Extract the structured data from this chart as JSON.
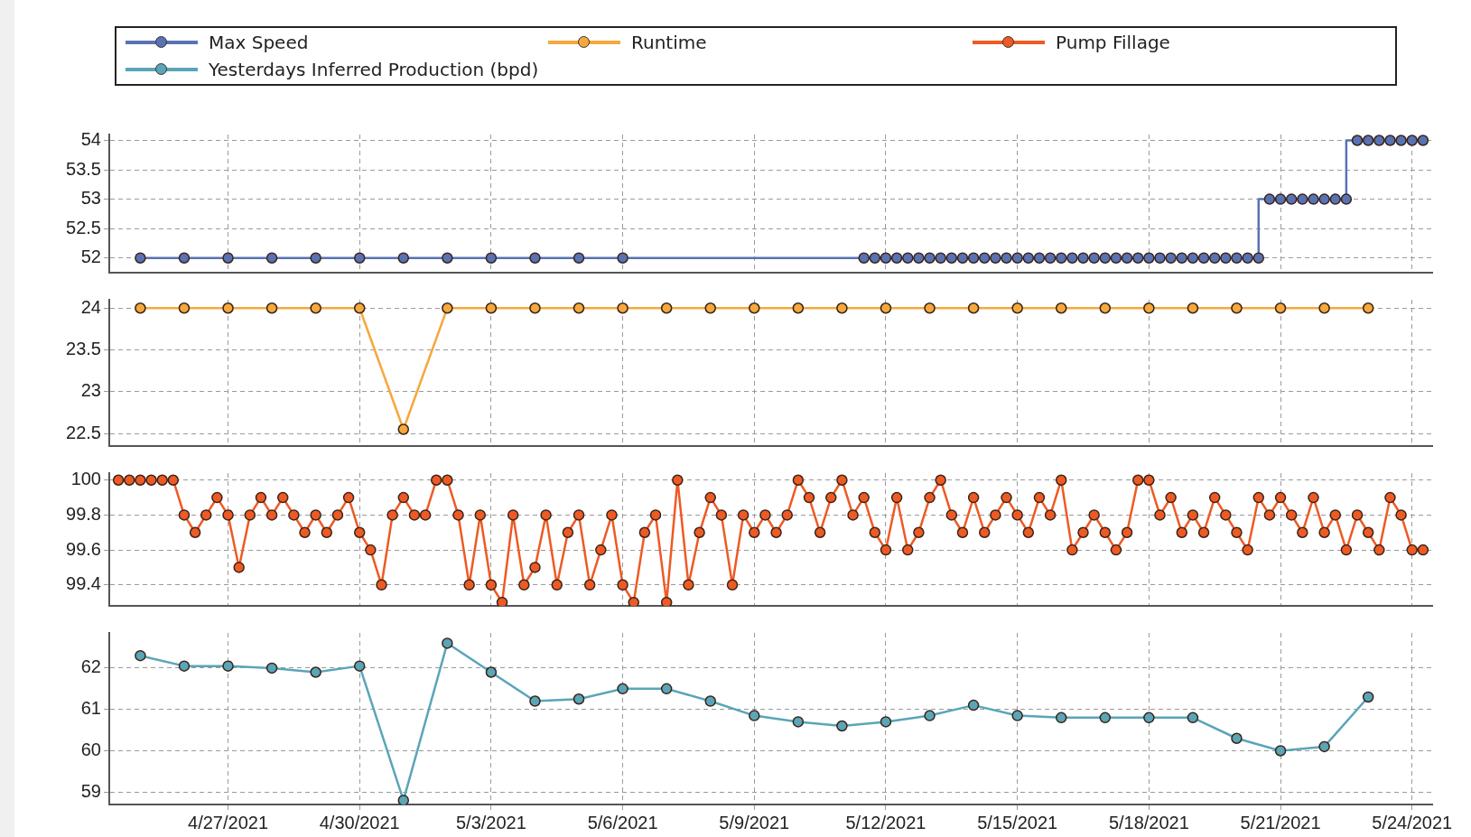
{
  "chart_data": [
    {
      "type": "step",
      "x": [
        "2021-04-25",
        "2021-04-26",
        "2021-04-27",
        "2021-04-28",
        "2021-04-29",
        "2021-04-30",
        "2021-05-01",
        "2021-05-02",
        "2021-05-03",
        "2021-05-04",
        "2021-05-05",
        "2021-05-06",
        "2021-05-11T12:00",
        "2021-05-11T18:00",
        "2021-05-12T00:00",
        "2021-05-12T06:00",
        "2021-05-12T12:00",
        "2021-05-12T18:00",
        "2021-05-13T00:00",
        "2021-05-13T06:00",
        "2021-05-13T12:00",
        "2021-05-13T18:00",
        "2021-05-14T00:00",
        "2021-05-14T06:00",
        "2021-05-14T12:00",
        "2021-05-14T18:00",
        "2021-05-15T00:00",
        "2021-05-15T06:00",
        "2021-05-15T12:00",
        "2021-05-15T18:00",
        "2021-05-16T00:00",
        "2021-05-16T06:00",
        "2021-05-16T12:00",
        "2021-05-16T18:00",
        "2021-05-17T00:00",
        "2021-05-17T06:00",
        "2021-05-17T12:00",
        "2021-05-17T18:00",
        "2021-05-18T00:00",
        "2021-05-18T06:00",
        "2021-05-18T12:00",
        "2021-05-18T18:00",
        "2021-05-19T00:00",
        "2021-05-19T06:00",
        "2021-05-19T12:00",
        "2021-05-19T18:00",
        "2021-05-20T00:00",
        "2021-05-20T06:00",
        "2021-05-20T12:00",
        "2021-05-20T18:00",
        "2021-05-21T00:00",
        "2021-05-21T06:00",
        "2021-05-21T12:00",
        "2021-05-21T18:00",
        "2021-05-22T00:00",
        "2021-05-22T06:00",
        "2021-05-22T12:00",
        "2021-05-22T18:00",
        "2021-05-23T00:00",
        "2021-05-23T06:00",
        "2021-05-23T12:00",
        "2021-05-23T18:00",
        "2021-05-24T00:00",
        "2021-05-24T06:00"
      ],
      "series": [
        {
          "name": "Max Speed",
          "color": "#5872b4",
          "values": [
            52,
            52,
            52,
            52,
            52,
            52,
            52,
            52,
            52,
            52,
            52,
            52,
            52,
            52,
            52,
            52,
            52,
            52,
            52,
            52,
            52,
            52,
            52,
            52,
            52,
            52,
            52,
            52,
            52,
            52,
            52,
            52,
            52,
            52,
            52,
            52,
            52,
            52,
            52,
            52,
            52,
            52,
            52,
            52,
            52,
            52,
            52,
            52,
            52,
            53,
            53,
            53,
            53,
            53,
            53,
            53,
            53,
            54,
            54,
            54,
            54,
            54,
            54,
            54
          ]
        }
      ],
      "xlim": [
        "2021-04-24T07:00",
        "2021-05-24T11:00"
      ],
      "xticks": [
        {
          "value": "2021-04-27",
          "label": null
        },
        {
          "value": "2021-04-30",
          "label": null
        },
        {
          "value": "2021-05-03",
          "label": null
        },
        {
          "value": "2021-05-06",
          "label": null
        },
        {
          "value": "2021-05-09",
          "label": null
        },
        {
          "value": "2021-05-12",
          "label": null
        },
        {
          "value": "2021-05-15",
          "label": null
        },
        {
          "value": "2021-05-18",
          "label": null
        },
        {
          "value": "2021-05-21",
          "label": null
        },
        {
          "value": "2021-05-24",
          "label": null
        }
      ],
      "ylim": [
        51.75,
        54.1
      ],
      "yticks": [
        52,
        52.5,
        53,
        53.5,
        54
      ],
      "grid": true,
      "marker": "circle",
      "legend": "top",
      "tick_labels": "y"
    },
    {
      "type": "line",
      "x": [
        "2021-04-25",
        "2021-04-26",
        "2021-04-27",
        "2021-04-28",
        "2021-04-29",
        "2021-04-30",
        "2021-05-01",
        "2021-05-02",
        "2021-05-03",
        "2021-05-04",
        "2021-05-05",
        "2021-05-06",
        "2021-05-07",
        "2021-05-08",
        "2021-05-09",
        "2021-05-10",
        "2021-05-11",
        "2021-05-12",
        "2021-05-13",
        "2021-05-14",
        "2021-05-15",
        "2021-05-16",
        "2021-05-17",
        "2021-05-18",
        "2021-05-19",
        "2021-05-20",
        "2021-05-21",
        "2021-05-22",
        "2021-05-23"
      ],
      "series": [
        {
          "name": "Runtime",
          "color": "#f5a83c",
          "values": [
            24,
            24,
            24,
            24,
            24,
            24,
            22.55,
            24,
            24,
            24,
            24,
            24,
            24,
            24,
            24,
            24,
            24,
            24,
            24,
            24,
            24,
            24,
            24,
            24,
            24,
            24,
            24,
            24,
            24
          ]
        }
      ],
      "xlim": [
        "2021-04-24T07:00",
        "2021-05-24T11:00"
      ],
      "xticks": [
        {
          "value": "2021-04-27",
          "label": null
        },
        {
          "value": "2021-04-30",
          "label": null
        },
        {
          "value": "2021-05-03",
          "label": null
        },
        {
          "value": "2021-05-06",
          "label": null
        },
        {
          "value": "2021-05-09",
          "label": null
        },
        {
          "value": "2021-05-12",
          "label": null
        },
        {
          "value": "2021-05-15",
          "label": null
        },
        {
          "value": "2021-05-18",
          "label": null
        },
        {
          "value": "2021-05-21",
          "label": null
        },
        {
          "value": "2021-05-24",
          "label": null
        }
      ],
      "ylim": [
        22.35,
        24.1
      ],
      "yticks": [
        22.5,
        23,
        23.5,
        24
      ],
      "grid": true,
      "marker": "circle",
      "legend": "top",
      "tick_labels": "y"
    },
    {
      "type": "line",
      "x": [
        "2021-04-24T12:00",
        "2021-04-24T18:00",
        "2021-04-25T00:00",
        "2021-04-25T06:00",
        "2021-04-25T12:00",
        "2021-04-25T18:00",
        "2021-04-26T00:00",
        "2021-04-26T06:00",
        "2021-04-26T12:00",
        "2021-04-26T18:00",
        "2021-04-27T00:00",
        "2021-04-27T06:00",
        "2021-04-27T12:00",
        "2021-04-27T18:00",
        "2021-04-28T00:00",
        "2021-04-28T06:00",
        "2021-04-28T12:00",
        "2021-04-28T18:00",
        "2021-04-29T00:00",
        "2021-04-29T06:00",
        "2021-04-29T12:00",
        "2021-04-29T18:00",
        "2021-04-30T00:00",
        "2021-04-30T06:00",
        "2021-04-30T12:00",
        "2021-04-30T18:00",
        "2021-05-01T00:00",
        "2021-05-01T06:00",
        "2021-05-01T12:00",
        "2021-05-01T18:00",
        "2021-05-02T00:00",
        "2021-05-02T06:00",
        "2021-05-02T12:00",
        "2021-05-02T18:00",
        "2021-05-03T00:00",
        "2021-05-03T06:00",
        "2021-05-03T12:00",
        "2021-05-03T18:00",
        "2021-05-04T00:00",
        "2021-05-04T06:00",
        "2021-05-04T12:00",
        "2021-05-04T18:00",
        "2021-05-05T00:00",
        "2021-05-05T06:00",
        "2021-05-05T12:00",
        "2021-05-05T18:00",
        "2021-05-06T00:00",
        "2021-05-06T06:00",
        "2021-05-06T12:00",
        "2021-05-06T18:00",
        "2021-05-07T00:00",
        "2021-05-07T06:00",
        "2021-05-07T12:00",
        "2021-05-07T18:00",
        "2021-05-08T00:00",
        "2021-05-08T06:00",
        "2021-05-08T12:00",
        "2021-05-08T18:00",
        "2021-05-09T00:00",
        "2021-05-09T06:00",
        "2021-05-09T12:00",
        "2021-05-09T18:00",
        "2021-05-10T00:00",
        "2021-05-10T06:00",
        "2021-05-10T12:00",
        "2021-05-10T18:00",
        "2021-05-11T00:00",
        "2021-05-11T06:00",
        "2021-05-11T12:00",
        "2021-05-11T18:00",
        "2021-05-12T00:00",
        "2021-05-12T06:00",
        "2021-05-12T12:00",
        "2021-05-12T18:00",
        "2021-05-13T00:00",
        "2021-05-13T06:00",
        "2021-05-13T12:00",
        "2021-05-13T18:00",
        "2021-05-14T00:00",
        "2021-05-14T06:00",
        "2021-05-14T12:00",
        "2021-05-14T18:00",
        "2021-05-15T00:00",
        "2021-05-15T06:00",
        "2021-05-15T12:00",
        "2021-05-15T18:00",
        "2021-05-16T00:00",
        "2021-05-16T06:00",
        "2021-05-16T12:00",
        "2021-05-16T18:00",
        "2021-05-17T00:00",
        "2021-05-17T06:00",
        "2021-05-17T12:00",
        "2021-05-17T18:00",
        "2021-05-18T00:00",
        "2021-05-18T06:00",
        "2021-05-18T12:00",
        "2021-05-18T18:00",
        "2021-05-19T00:00",
        "2021-05-19T06:00",
        "2021-05-19T12:00",
        "2021-05-19T18:00",
        "2021-05-20T00:00",
        "2021-05-20T06:00",
        "2021-05-20T12:00",
        "2021-05-20T18:00",
        "2021-05-21T00:00",
        "2021-05-21T06:00",
        "2021-05-21T12:00",
        "2021-05-21T18:00",
        "2021-05-22T00:00",
        "2021-05-22T06:00",
        "2021-05-22T12:00",
        "2021-05-22T18:00",
        "2021-05-23T00:00",
        "2021-05-23T06:00",
        "2021-05-23T12:00",
        "2021-05-23T18:00",
        "2021-05-24T00:00",
        "2021-05-24T06:00"
      ],
      "series": [
        {
          "name": "Pump Fillage",
          "color": "#ee5a24",
          "values": [
            100,
            100,
            100,
            100,
            100,
            100,
            99.8,
            99.7,
            99.8,
            99.9,
            99.8,
            99.5,
            99.8,
            99.9,
            99.8,
            99.9,
            99.8,
            99.7,
            99.8,
            99.7,
            99.8,
            99.9,
            99.7,
            99.6,
            99.4,
            99.8,
            99.9,
            99.8,
            99.8,
            100,
            100,
            99.8,
            99.4,
            99.8,
            99.4,
            99.3,
            99.8,
            99.4,
            99.5,
            99.8,
            99.4,
            99.7,
            99.8,
            99.4,
            99.6,
            99.8,
            99.4,
            99.3,
            99.7,
            99.8,
            99.3,
            100,
            99.4,
            99.7,
            99.9,
            99.8,
            99.4,
            99.8,
            99.7,
            99.8,
            99.7,
            99.8,
            100,
            99.9,
            99.7,
            99.9,
            100,
            99.8,
            99.9,
            99.7,
            99.6,
            99.9,
            99.6,
            99.7,
            99.9,
            100,
            99.8,
            99.7,
            99.9,
            99.7,
            99.8,
            99.9,
            99.8,
            99.7,
            99.9,
            99.8,
            100,
            99.6,
            99.7,
            99.8,
            99.7,
            99.6,
            99.7,
            100,
            100,
            99.8,
            99.9,
            99.7,
            99.8,
            99.7,
            99.9,
            99.8,
            99.7,
            99.6,
            99.9,
            99.8,
            99.9,
            99.8,
            99.7,
            99.9,
            99.7,
            99.8,
            99.6,
            99.8,
            99.7,
            99.6,
            99.9,
            99.8,
            99.6,
            99.6
          ]
        }
      ],
      "xlim": [
        "2021-04-24T07:00",
        "2021-05-24T11:00"
      ],
      "xticks": [
        {
          "value": "2021-04-27",
          "label": null
        },
        {
          "value": "2021-04-30",
          "label": null
        },
        {
          "value": "2021-05-03",
          "label": null
        },
        {
          "value": "2021-05-06",
          "label": null
        },
        {
          "value": "2021-05-09",
          "label": null
        },
        {
          "value": "2021-05-12",
          "label": null
        },
        {
          "value": "2021-05-15",
          "label": null
        },
        {
          "value": "2021-05-18",
          "label": null
        },
        {
          "value": "2021-05-21",
          "label": null
        },
        {
          "value": "2021-05-24",
          "label": null
        }
      ],
      "ylim": [
        99.28,
        100.04
      ],
      "yticks": [
        99.4,
        99.6,
        99.8,
        100
      ],
      "grid": true,
      "marker": "circle",
      "legend": "top",
      "tick_labels": "y"
    },
    {
      "type": "line",
      "x": [
        "2021-04-25",
        "2021-04-26",
        "2021-04-27",
        "2021-04-28",
        "2021-04-29",
        "2021-04-30",
        "2021-05-01",
        "2021-05-02",
        "2021-05-03",
        "2021-05-04",
        "2021-05-05",
        "2021-05-06",
        "2021-05-07",
        "2021-05-08",
        "2021-05-09",
        "2021-05-10",
        "2021-05-11",
        "2021-05-12",
        "2021-05-13",
        "2021-05-14",
        "2021-05-15",
        "2021-05-16",
        "2021-05-17",
        "2021-05-18",
        "2021-05-19",
        "2021-05-20",
        "2021-05-21",
        "2021-05-22",
        "2021-05-23"
      ],
      "series": [
        {
          "name": "Yesterdays Inferred Production (bpd)",
          "color": "#5aa5b8",
          "values": [
            62.3,
            62.05,
            62.05,
            62,
            61.9,
            62.05,
            58.8,
            62.6,
            61.9,
            61.2,
            61.25,
            61.5,
            61.5,
            61.2,
            60.85,
            60.7,
            60.6,
            60.7,
            60.85,
            61.1,
            60.85,
            60.8,
            60.8,
            60.8,
            60.8,
            60.3,
            60,
            60.1,
            61.3
          ]
        }
      ],
      "xlim": [
        "2021-04-24T07:00",
        "2021-05-24T11:00"
      ],
      "xticks": [
        {
          "value": "2021-04-27",
          "label": "4/27/2021"
        },
        {
          "value": "2021-04-30",
          "label": "4/30/2021"
        },
        {
          "value": "2021-05-03",
          "label": "5/3/2021"
        },
        {
          "value": "2021-05-06",
          "label": "5/6/2021"
        },
        {
          "value": "2021-05-09",
          "label": "5/9/2021"
        },
        {
          "value": "2021-05-12",
          "label": "5/12/2021"
        },
        {
          "value": "2021-05-15",
          "label": "5/15/2021"
        },
        {
          "value": "2021-05-18",
          "label": "5/18/2021"
        },
        {
          "value": "2021-05-21",
          "label": "5/21/2021"
        },
        {
          "value": "2021-05-24",
          "label": "5/24/2021"
        }
      ],
      "ylim": [
        58.7,
        62.85
      ],
      "yticks": [
        59,
        60,
        61,
        62
      ],
      "grid": true,
      "marker": "circle",
      "legend": "top"
    }
  ]
}
